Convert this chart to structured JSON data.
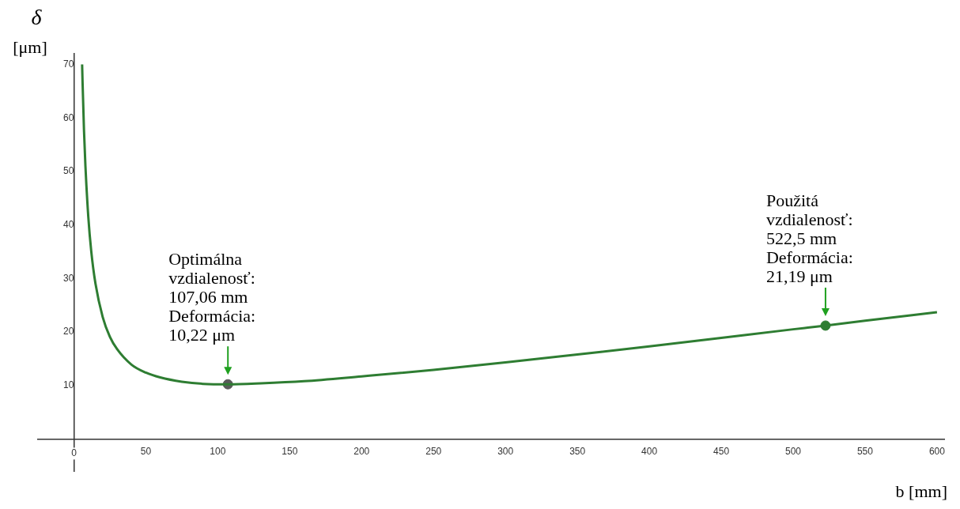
{
  "chart_data": {
    "type": "line",
    "xlabel": "b [mm]",
    "ylabel": "δ\n[μm]",
    "xlim": [
      -25,
      605
    ],
    "ylim": [
      -6,
      72
    ],
    "xticks": [
      0,
      50,
      100,
      150,
      200,
      250,
      300,
      350,
      400,
      450,
      500,
      550,
      600
    ],
    "yticks": [
      10,
      20,
      30,
      40,
      50,
      60,
      70
    ],
    "grid": false,
    "legend": false,
    "series": [
      {
        "color": "#2e7d32",
        "marker": "none",
        "x": [
          5.7,
          6,
          7,
          8,
          10,
          12,
          15,
          20,
          25,
          30,
          40,
          50,
          60,
          75,
          90,
          107.06,
          130,
          160,
          200,
          250,
          300,
          350,
          400,
          450,
          500,
          522.5,
          550,
          600
        ],
        "values": [
          70,
          66.8,
          57.7,
          51.0,
          41.5,
          35.2,
          29.0,
          22.8,
          19.1,
          16.8,
          13.9,
          12.4,
          11.5,
          10.7,
          10.3,
          10.22,
          10.4,
          10.8,
          11.7,
          12.9,
          14.3,
          15.8,
          17.3,
          18.9,
          20.5,
          21.19,
          22.1,
          23.7
        ]
      },
      {
        "type": "scatter",
        "color": "#5a5a5a",
        "marker": "circle",
        "x": [
          107.06
        ],
        "values": [
          10.22
        ]
      },
      {
        "type": "scatter",
        "color": "#2e7d32",
        "marker": "circle",
        "x": [
          522.5
        ],
        "values": [
          21.19
        ]
      }
    ],
    "annotations": [
      {
        "text": "Optimálna\nvzdialenosť:\n107,06 mm\nDeformácia:\n10,22 μm",
        "x": 107.06,
        "y": 10.22
      },
      {
        "text": "Použitá\nvzdialenosť:\n522,5 mm\nDeformácia:\n21,19 μm",
        "x": 522.5,
        "y": 21.19
      }
    ]
  }
}
